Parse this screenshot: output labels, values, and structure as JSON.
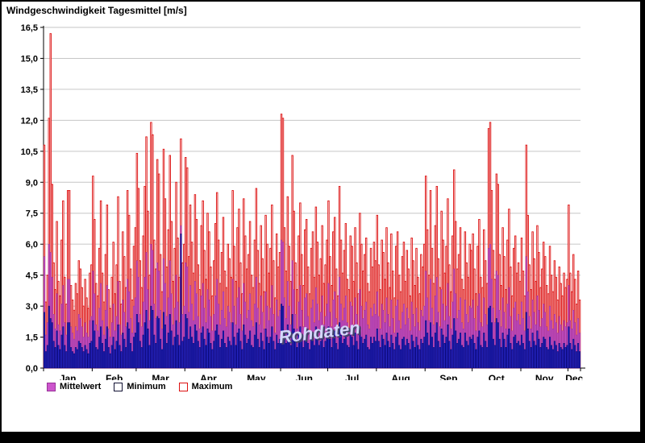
{
  "watermark": "Rohdaten",
  "chart_data": {
    "type": "bar",
    "title": "Windgeschwindigkeit Tagesmittel [m/s]",
    "xlabel": "",
    "ylabel": "",
    "ylim": [
      0,
      16.5
    ],
    "ytick_step": 1.5,
    "ytick_labels": [
      "0,0",
      "1,5",
      "3,0",
      "4,5",
      "6,0",
      "7,5",
      "9,0",
      "10,5",
      "12,0",
      "13,5",
      "15,0",
      "16,5"
    ],
    "grid": "horizontal",
    "legend_position": "bottom-left",
    "months": [
      "Jan",
      "Feb",
      "Mar",
      "Apr",
      "May",
      "Jun",
      "Jul",
      "Aug",
      "Sep",
      "Oct",
      "Nov",
      "Dec"
    ],
    "month_days": [
      31,
      28,
      31,
      30,
      31,
      30,
      31,
      31,
      30,
      31,
      30,
      8
    ],
    "series": [
      {
        "name": "Mittelwert",
        "color": "#cc55cc",
        "edge": "#993399",
        "values": [
          5.4,
          1.6,
          2.2,
          6.0,
          5.6,
          4.4,
          2.6,
          1.9,
          3.6,
          2.1,
          1.8,
          3.1,
          4.0,
          2.2,
          1.6,
          4.3,
          4.3,
          2.0,
          1.7,
          1.4,
          2.0,
          1.8,
          2.6,
          2.4,
          2.0,
          1.5,
          2.2,
          1.7,
          1.5,
          2.3,
          2.5,
          4.7,
          3.6,
          2.1,
          1.8,
          2.9,
          4.1,
          2.3,
          1.6,
          2.8,
          4.0,
          1.9,
          1.5,
          2.2,
          3.1,
          1.8,
          2.5,
          4.2,
          2.1,
          1.6,
          3.3,
          2.7,
          2.0,
          4.3,
          3.7,
          2.4,
          1.7,
          3.0,
          3.4,
          5.2,
          4.4,
          2.6,
          2.0,
          3.2,
          4.4,
          5.6,
          3.8,
          2.3,
          6.0,
          5.7,
          3.1,
          2.4,
          5.1,
          4.7,
          2.8,
          1.9,
          5.3,
          4.1,
          2.5,
          3.4,
          5.2,
          3.6,
          2.1,
          2.9,
          4.5,
          3.2,
          2.2,
          6.9,
          2.6,
          3.0,
          5.1,
          4.9,
          2.7,
          4.0,
          3.1,
          2.3,
          4.2,
          3.6,
          2.5,
          1.9,
          3.5,
          4.1,
          2.9,
          2.2,
          3.8,
          3.3,
          2.5,
          1.8,
          2.6,
          3.5,
          4.3,
          3.1,
          2.1,
          2.8,
          3.7,
          2.4,
          2.0,
          3.0,
          2.7,
          2.2,
          4.3,
          3.0,
          2.1,
          3.4,
          3.9,
          2.6,
          1.8,
          4.1,
          3.2,
          2.4,
          2.8,
          3.6,
          2.3,
          2.0,
          3.1,
          4.4,
          2.9,
          2.1,
          3.5,
          2.7,
          1.9,
          3.7,
          3.0,
          2.3,
          2.9,
          4.0,
          2.6,
          1.7,
          3.3,
          2.5,
          2.8,
          6.2,
          6.1,
          3.4,
          2.4,
          4.2,
          3.0,
          2.1,
          5.2,
          3.8,
          2.6,
          1.9,
          3.2,
          4.0,
          2.8,
          2.0,
          3.4,
          3.6,
          2.5,
          1.8,
          2.9,
          3.3,
          2.2,
          3.9,
          3.1,
          2.3,
          2.7,
          3.5,
          2.1,
          2.5,
          3.1,
          4.1,
          2.7,
          2.0,
          3.3,
          3.7,
          2.4,
          1.8,
          4.4,
          3.1,
          2.3,
          2.9,
          3.5,
          2.2,
          1.9,
          3.2,
          3.0,
          2.1,
          3.4,
          2.6,
          1.8,
          3.8,
          3.0,
          2.4,
          2.8,
          3.2,
          2.1,
          1.9,
          2.9,
          2.5,
          3.1,
          2.6,
          3.7,
          2.5,
          1.9,
          3.1,
          2.8,
          2.2,
          3.4,
          2.6,
          2.0,
          3.3,
          2.4,
          1.7,
          3.0,
          3.3,
          2.3,
          1.9,
          2.7,
          3.1,
          2.1,
          2.9,
          2.4,
          1.8,
          3.2,
          2.6,
          2.0,
          2.9,
          2.2,
          1.8,
          2.8,
          2.5,
          3.0,
          4.7,
          3.4,
          2.3,
          4.3,
          2.9,
          2.1,
          3.5,
          4.4,
          2.7,
          2.0,
          3.8,
          3.1,
          2.3,
          3.0,
          4.1,
          2.5,
          1.9,
          3.2,
          4.8,
          3.6,
          2.4,
          2.8,
          3.4,
          2.2,
          1.9,
          3.3,
          2.6,
          2.2,
          3.0,
          2.9,
          3.3,
          2.4,
          1.8,
          3.0,
          3.6,
          2.2,
          2.0,
          3.4,
          2.6,
          2.1,
          5.8,
          6.0,
          4.3,
          2.9,
          2.2,
          4.7,
          4.5,
          2.8,
          2.0,
          3.4,
          2.7,
          1.9,
          3.1,
          3.9,
          2.5,
          1.8,
          2.9,
          3.2,
          2.3,
          2.6,
          2.1,
          3.2,
          2.4,
          1.8,
          5.4,
          3.7,
          2.5,
          1.9,
          3.3,
          2.7,
          2.1,
          3.5,
          2.8,
          2.0,
          2.4,
          3.1,
          2.7,
          2.0,
          1.8,
          3.0,
          2.3,
          1.9,
          2.6,
          2.2,
          1.7,
          2.5,
          2.1,
          1.8,
          2.3,
          2.0,
          2.2,
          4.0,
          2.3,
          1.9,
          2.8,
          2.2,
          1.6,
          2.4,
          1.7
        ]
      },
      {
        "name": "Minimum",
        "color": "#2b2bd0",
        "edge": "#000066",
        "values": [
          2.7,
          0.8,
          1.1,
          3.0,
          2.4,
          2.2,
          1.3,
          1.0,
          1.8,
          1.1,
          0.9,
          1.6,
          2.0,
          1.1,
          0.8,
          2.2,
          2.2,
          1.0,
          0.8,
          0.7,
          1.0,
          0.9,
          1.3,
          1.2,
          1.0,
          0.8,
          1.1,
          0.9,
          0.7,
          1.2,
          1.3,
          2.3,
          1.8,
          1.0,
          0.9,
          1.5,
          2.0,
          1.2,
          0.8,
          1.4,
          2.0,
          1.0,
          0.7,
          1.1,
          1.5,
          0.9,
          1.3,
          2.1,
          1.1,
          0.8,
          1.7,
          1.4,
          1.0,
          2.2,
          1.9,
          1.2,
          0.8,
          1.5,
          1.7,
          2.6,
          2.2,
          1.3,
          1.0,
          1.6,
          2.2,
          2.8,
          1.9,
          1.1,
          3.0,
          2.8,
          1.6,
          1.2,
          2.5,
          2.4,
          1.4,
          0.9,
          2.7,
          2.1,
          1.2,
          1.7,
          2.6,
          1.8,
          1.1,
          1.5,
          2.3,
          1.6,
          1.1,
          6.5,
          1.3,
          1.5,
          2.6,
          2.4,
          1.4,
          2.0,
          1.5,
          1.2,
          2.1,
          1.8,
          1.3,
          1.0,
          1.7,
          2.0,
          1.4,
          1.1,
          1.9,
          1.7,
          1.2,
          0.9,
          1.3,
          1.8,
          2.1,
          1.6,
          1.0,
          1.4,
          1.8,
          1.2,
          1.0,
          1.5,
          1.3,
          1.1,
          2.2,
          1.5,
          1.1,
          1.7,
          1.9,
          1.3,
          0.9,
          2.1,
          1.6,
          1.2,
          1.4,
          1.8,
          1.1,
          1.0,
          1.6,
          2.2,
          1.4,
          1.0,
          1.7,
          1.3,
          0.9,
          1.9,
          1.5,
          1.2,
          1.5,
          2.0,
          1.3,
          0.9,
          1.6,
          1.2,
          1.4,
          3.1,
          3.0,
          1.7,
          1.2,
          2.1,
          1.5,
          1.1,
          2.6,
          1.9,
          1.3,
          1.0,
          1.6,
          2.0,
          1.4,
          1.0,
          1.7,
          1.8,
          1.2,
          0.9,
          1.5,
          1.7,
          1.1,
          2.0,
          1.5,
          1.1,
          1.3,
          1.8,
          1.0,
          1.3,
          1.6,
          2.0,
          1.4,
          1.0,
          1.7,
          1.8,
          1.2,
          0.9,
          2.2,
          1.6,
          1.2,
          1.4,
          1.8,
          1.1,
          1.0,
          1.6,
          1.5,
          1.1,
          1.7,
          1.3,
          0.9,
          1.9,
          1.5,
          1.2,
          1.4,
          1.6,
          1.0,
          0.9,
          1.5,
          1.2,
          1.5,
          1.3,
          1.9,
          1.3,
          1.0,
          1.6,
          1.4,
          1.1,
          1.7,
          1.3,
          1.0,
          1.6,
          1.2,
          0.9,
          1.5,
          1.7,
          1.1,
          0.9,
          1.4,
          1.5,
          1.1,
          1.4,
          1.2,
          0.9,
          1.6,
          1.3,
          1.0,
          1.5,
          1.1,
          0.9,
          1.4,
          1.2,
          1.5,
          2.3,
          1.7,
          1.1,
          2.2,
          1.5,
          1.0,
          1.7,
          2.2,
          1.3,
          1.0,
          1.9,
          1.6,
          1.2,
          1.5,
          2.1,
          1.3,
          0.9,
          1.6,
          2.4,
          1.8,
          1.2,
          1.4,
          1.7,
          1.1,
          1.0,
          1.7,
          1.3,
          1.1,
          1.5,
          1.4,
          1.6,
          1.2,
          0.9,
          1.5,
          1.8,
          1.1,
          1.0,
          1.7,
          1.3,
          1.0,
          2.9,
          3.0,
          2.2,
          1.4,
          1.1,
          2.4,
          2.2,
          1.4,
          1.0,
          1.7,
          1.4,
          1.0,
          1.6,
          1.9,
          1.2,
          0.9,
          1.5,
          1.6,
          1.2,
          1.3,
          1.1,
          1.6,
          1.2,
          0.9,
          2.7,
          1.9,
          1.3,
          1.0,
          1.7,
          1.3,
          1.1,
          1.8,
          1.4,
          1.0,
          1.2,
          1.5,
          1.4,
          1.0,
          0.9,
          1.5,
          1.1,
          0.9,
          1.3,
          1.1,
          0.8,
          1.2,
          1.0,
          0.9,
          1.2,
          1.0,
          1.1,
          2.0,
          1.2,
          0.9,
          1.4,
          1.1,
          0.8,
          1.2,
          0.8
        ]
      },
      {
        "name": "Maximum",
        "color": "#dd1111",
        "edge": "#a00000",
        "values": [
          10.8,
          3.2,
          4.5,
          12.1,
          16.2,
          8.9,
          5.1,
          3.8,
          7.1,
          4.2,
          3.5,
          6.2,
          8.1,
          4.4,
          3.1,
          8.6,
          8.6,
          4.0,
          3.3,
          2.8,
          4.1,
          3.6,
          5.2,
          4.8,
          3.9,
          3.0,
          4.3,
          3.4,
          2.9,
          4.6,
          5.0,
          9.3,
          7.2,
          4.1,
          3.5,
          5.8,
          8.1,
          4.6,
          3.2,
          5.5,
          7.9,
          3.8,
          2.9,
          4.4,
          6.1,
          3.6,
          5.0,
          8.3,
          4.2,
          3.1,
          6.6,
          5.4,
          3.9,
          8.6,
          7.4,
          4.8,
          3.3,
          5.9,
          6.8,
          10.4,
          8.7,
          5.2,
          3.9,
          6.4,
          8.8,
          11.2,
          7.6,
          4.5,
          11.9,
          11.3,
          6.2,
          4.8,
          10.1,
          9.4,
          5.5,
          3.7,
          10.6,
          8.2,
          4.9,
          6.7,
          10.3,
          7.1,
          4.2,
          5.8,
          9.0,
          6.3,
          4.4,
          11.1,
          5.1,
          6.0,
          10.2,
          9.7,
          5.4,
          7.9,
          6.1,
          4.6,
          8.4,
          7.2,
          5.0,
          3.8,
          6.9,
          8.1,
          5.7,
          4.3,
          7.5,
          6.6,
          4.9,
          3.5,
          5.2,
          7.0,
          8.5,
          6.2,
          4.1,
          5.6,
          7.3,
          4.7,
          3.9,
          6.0,
          5.3,
          4.4,
          8.6,
          5.9,
          4.2,
          6.8,
          7.7,
          5.1,
          3.6,
          8.2,
          6.4,
          4.8,
          5.5,
          7.1,
          4.5,
          3.9,
          6.2,
          8.7,
          5.7,
          4.1,
          6.9,
          5.3,
          3.7,
          7.4,
          6.0,
          4.6,
          5.8,
          7.9,
          5.2,
          3.4,
          6.5,
          4.9,
          5.6,
          12.3,
          12.1,
          6.8,
          4.7,
          8.3,
          5.9,
          4.2,
          10.3,
          7.6,
          5.1,
          3.8,
          6.4,
          8.0,
          5.5,
          4.0,
          6.7,
          7.2,
          4.9,
          3.6,
          5.8,
          6.6,
          4.4,
          7.8,
          6.1,
          4.5,
          5.3,
          6.9,
          4.1,
          5.0,
          6.2,
          8.1,
          5.4,
          4.0,
          6.6,
          7.3,
          4.8,
          3.5,
          8.8,
          6.2,
          4.6,
          5.7,
          7.0,
          4.3,
          3.8,
          6.4,
          5.9,
          4.2,
          6.8,
          5.1,
          3.6,
          7.5,
          6.0,
          4.7,
          5.5,
          6.3,
          4.1,
          3.7,
          5.8,
          4.9,
          6.1,
          5.2,
          7.4,
          5.0,
          3.8,
          6.2,
          5.6,
          4.3,
          6.8,
          5.1,
          3.9,
          6.5,
          4.7,
          3.4,
          5.9,
          6.6,
          4.5,
          3.7,
          5.4,
          6.1,
          4.2,
          5.7,
          4.8,
          3.5,
          6.3,
          5.2,
          4.0,
          5.8,
          4.4,
          3.6,
          5.5,
          4.9,
          6.0,
          9.3,
          6.7,
          4.5,
          8.6,
          5.8,
          4.1,
          6.9,
          8.8,
          5.3,
          3.9,
          7.6,
          6.2,
          4.6,
          5.9,
          8.2,
          5.0,
          3.7,
          6.4,
          9.6,
          7.1,
          4.8,
          5.5,
          6.8,
          4.3,
          3.8,
          6.6,
          5.1,
          4.4,
          6.0,
          5.7,
          6.5,
          4.8,
          3.6,
          5.9,
          7.2,
          4.4,
          3.9,
          6.7,
          5.2,
          4.1,
          11.6,
          11.9,
          8.6,
          5.7,
          4.3,
          9.4,
          8.9,
          5.5,
          4.0,
          6.8,
          5.4,
          3.8,
          6.2,
          7.7,
          4.9,
          3.5,
          5.8,
          6.4,
          4.6,
          5.1,
          4.2,
          6.3,
          4.7,
          3.5,
          10.8,
          7.4,
          5.0,
          3.8,
          6.6,
          5.3,
          4.2,
          6.9,
          5.6,
          3.9,
          4.8,
          6.1,
          5.4,
          4.0,
          3.6,
          5.9,
          4.5,
          3.7,
          5.2,
          4.4,
          3.3,
          4.9,
          4.1,
          3.5,
          4.6,
          3.9,
          4.3,
          7.9,
          4.6,
          3.7,
          5.5,
          4.3,
          3.1,
          4.7,
          3.3
        ]
      }
    ]
  }
}
